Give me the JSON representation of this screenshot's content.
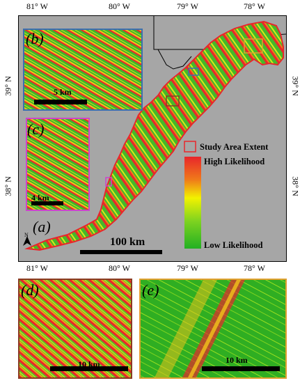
{
  "axes": {
    "top_lon": [
      "81° W",
      "80° W",
      "79° W",
      "78° W"
    ],
    "bottom_lon": [
      "81° W",
      "80° W",
      "79° W",
      "78° W"
    ],
    "left_lat": [
      "39° N",
      "38° N"
    ],
    "right_lat": [
      "39° N",
      "38° N"
    ]
  },
  "panels": {
    "a": "(a)",
    "b": "(b)",
    "c": "(c)",
    "d": "(d)",
    "e": "(e)"
  },
  "scale_bars": {
    "main": "100 km",
    "b": "5 km",
    "c": "4 km",
    "d": "10 km",
    "e": "10 km"
  },
  "north_arrow": "N",
  "legend": {
    "study_area": "Study Area Extent",
    "high": "High Likelihood",
    "low": "Low Likelihood"
  },
  "colors": {
    "background": "#a6a6a6",
    "study_outline": "#e8262b",
    "high": "#e8262b",
    "mid": "#f2f200",
    "low": "#22b022",
    "frame_b": "#3a6fb0",
    "frame_c": "#cc44cc",
    "frame_d": "#8a3a22",
    "frame_e": "#e0a030"
  }
}
